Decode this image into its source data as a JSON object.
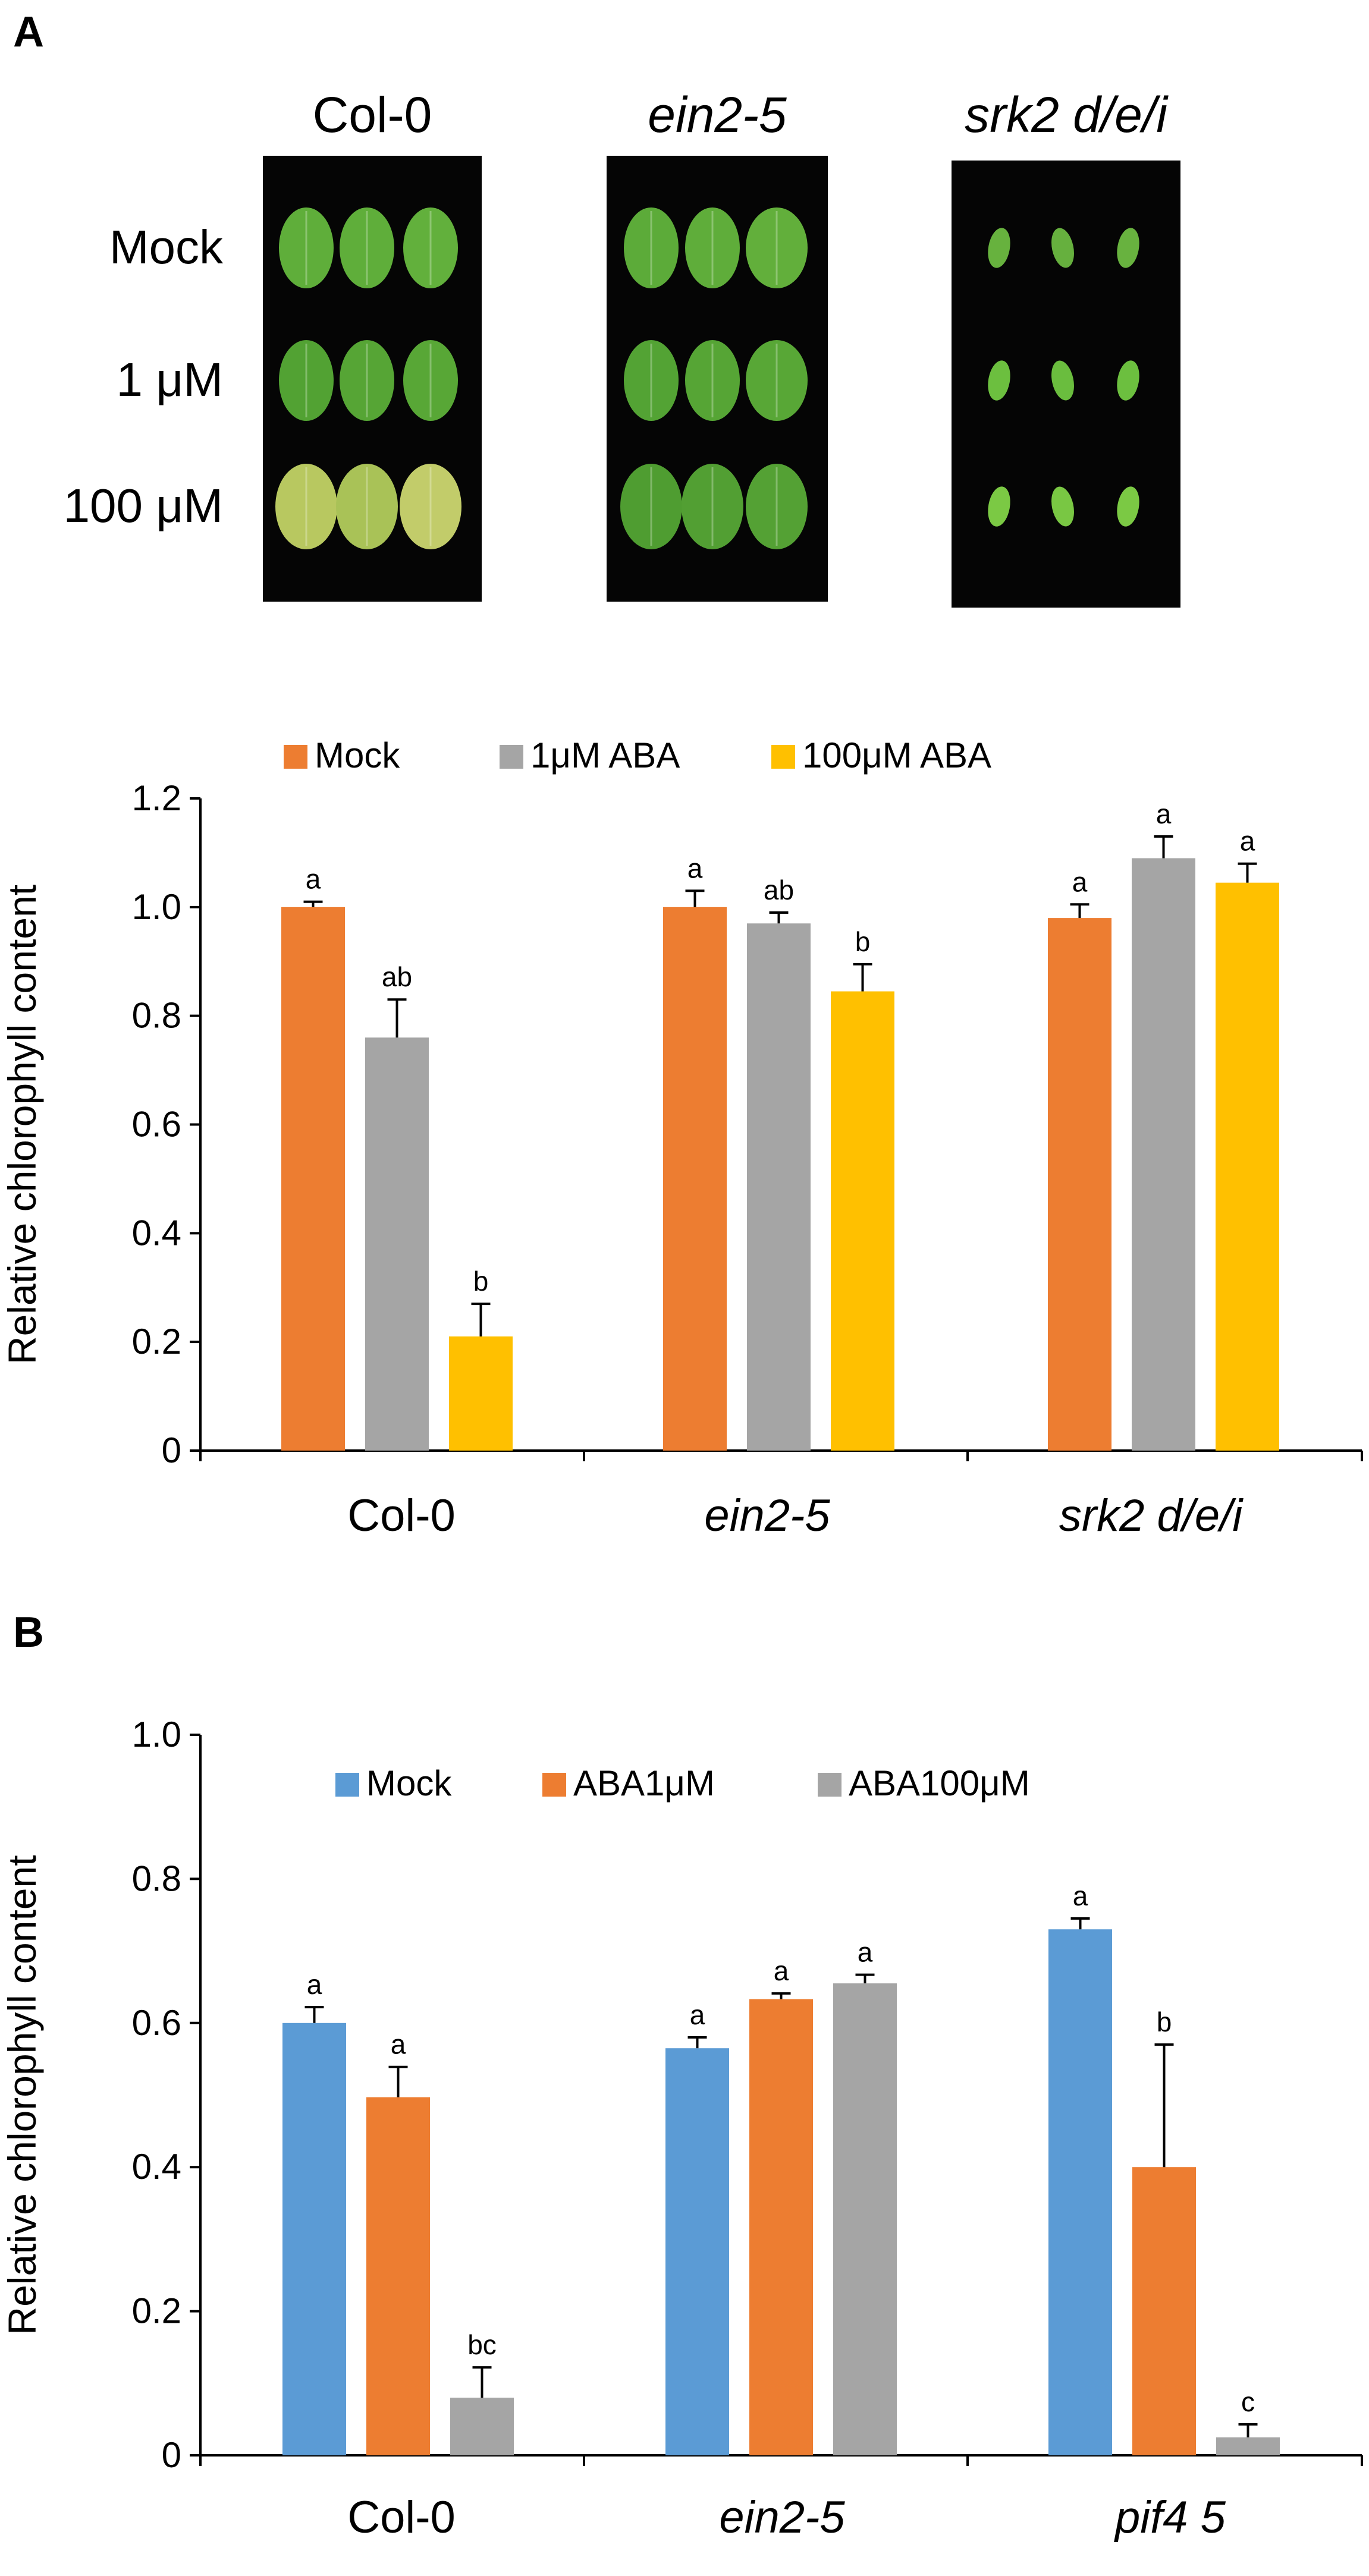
{
  "figure": {
    "panel_a_label": "A",
    "panel_b_label": "B",
    "photo": {
      "genotypes": [
        {
          "label": "Col-0",
          "italic": false
        },
        {
          "label": "ein2-5",
          "italic": true
        },
        {
          "label": "srk2 d/e/i",
          "italic": true
        }
      ],
      "rows": [
        "Mock",
        "1 μM",
        "100 μM"
      ],
      "leaf_colors": [
        [
          "#5fae3a",
          "#5fae3a",
          "#62b03c",
          "#5cab39",
          "#5fad3a",
          "#62af3b",
          "#67b23e",
          "#66b03e",
          "#68b23f"
        ],
        [
          "#52a233",
          "#56a535",
          "#58a736",
          "#53a334",
          "#56a535",
          "#58a736",
          "#6cbf3f",
          "#6abd3e",
          "#6cbf3f"
        ],
        [
          "#b8c860",
          "#a9c257",
          "#c2cc6a",
          "#4f9d31",
          "#529f33",
          "#54a134",
          "#7bc944",
          "#79c743",
          "#7bc944"
        ]
      ]
    }
  },
  "chart_data": [
    {
      "type": "bar",
      "panel": "A",
      "title": "",
      "xlabel": "",
      "ylabel": "Relative chlorophyll content",
      "ylim": [
        0,
        1.2
      ],
      "yticks": [
        "0",
        "0.2",
        "0.4",
        "0.6",
        "0.8",
        "1.0",
        "1.2"
      ],
      "ytick_values": [
        0,
        0.2,
        0.4,
        0.6,
        0.8,
        1.0,
        1.2
      ],
      "grid": false,
      "legend_position": "top",
      "categories": [
        {
          "label": "Col-0",
          "italic": false
        },
        {
          "label": "ein2-5",
          "italic": true
        },
        {
          "label": "srk2 d/e/i",
          "italic": true
        }
      ],
      "series": [
        {
          "name": "Mock",
          "color": "#ed7d31",
          "values": [
            1.0,
            1.0,
            0.98
          ],
          "errors": [
            0.01,
            0.03,
            0.025
          ],
          "letters": [
            "a",
            "a",
            "a"
          ]
        },
        {
          "name": "1μM ABA",
          "color": "#a5a5a5",
          "values": [
            0.76,
            0.97,
            1.09
          ],
          "errors": [
            0.07,
            0.02,
            0.04
          ],
          "letters": [
            "ab",
            "ab",
            "a"
          ]
        },
        {
          "name": "100μM ABA",
          "color": "#ffc000",
          "values": [
            0.21,
            0.845,
            1.045
          ],
          "errors": [
            0.06,
            0.05,
            0.035
          ],
          "letters": [
            "b",
            "b",
            "a"
          ]
        }
      ]
    },
    {
      "type": "bar",
      "panel": "B",
      "title": "",
      "xlabel": "",
      "ylabel": "Relative chlorophyll content",
      "ylim": [
        0,
        1.0
      ],
      "yticks": [
        "0",
        "0.2",
        "0.4",
        "0.6",
        "0.8",
        "1.0"
      ],
      "ytick_values": [
        0,
        0.2,
        0.4,
        0.6,
        0.8,
        1.0
      ],
      "grid": false,
      "legend_position": "top",
      "categories": [
        {
          "label": "Col-0",
          "italic": false
        },
        {
          "label": "ein2-5",
          "italic": true
        },
        {
          "label": "pif4 5",
          "italic": true
        }
      ],
      "series": [
        {
          "name": "Mock",
          "color": "#5b9bd5",
          "values": [
            0.6,
            0.565,
            0.73
          ],
          "errors": [
            0.022,
            0.015,
            0.015
          ],
          "letters": [
            "a",
            "a",
            "a"
          ]
        },
        {
          "name": "ABA1μM",
          "color": "#ed7d31",
          "values": [
            0.497,
            0.633,
            0.4
          ],
          "errors": [
            0.042,
            0.008,
            0.17
          ],
          "letters": [
            "a",
            "a",
            "b"
          ]
        },
        {
          "name": "ABA100μM",
          "color": "#a5a5a5",
          "values": [
            0.08,
            0.655,
            0.025
          ],
          "errors": [
            0.042,
            0.012,
            0.018
          ],
          "letters": [
            "bc",
            "a",
            "c"
          ]
        }
      ]
    }
  ]
}
